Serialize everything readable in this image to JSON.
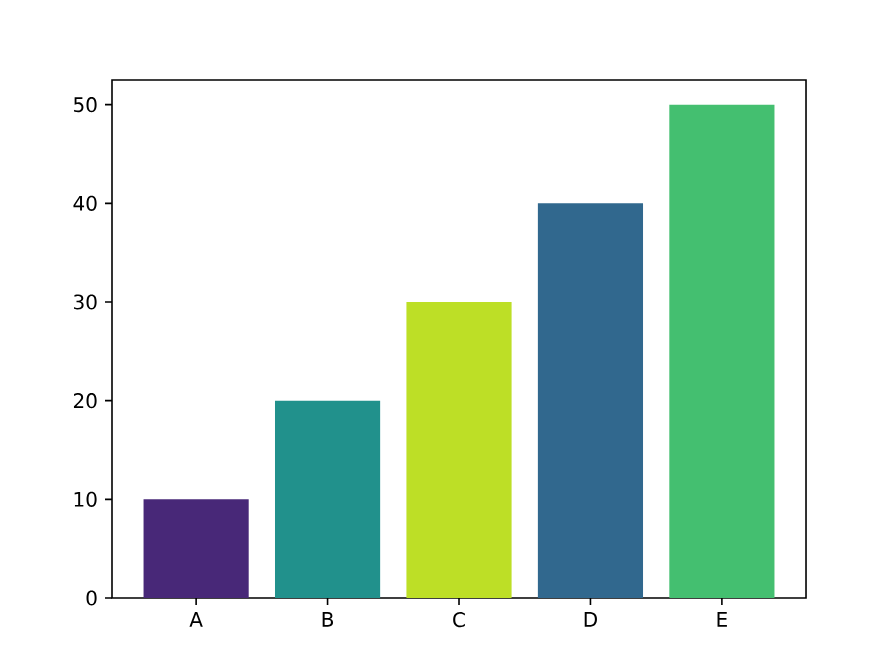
{
  "chart_data": {
    "type": "bar",
    "categories": [
      "A",
      "B",
      "C",
      "D",
      "E"
    ],
    "values": [
      10,
      20,
      30,
      40,
      50
    ],
    "colors": [
      "#482878",
      "#21918c",
      "#bddf26",
      "#31688e",
      "#44bf70"
    ],
    "ylim": [
      0,
      52.5
    ],
    "yticks": [
      0,
      10,
      20,
      30,
      40,
      50
    ]
  }
}
